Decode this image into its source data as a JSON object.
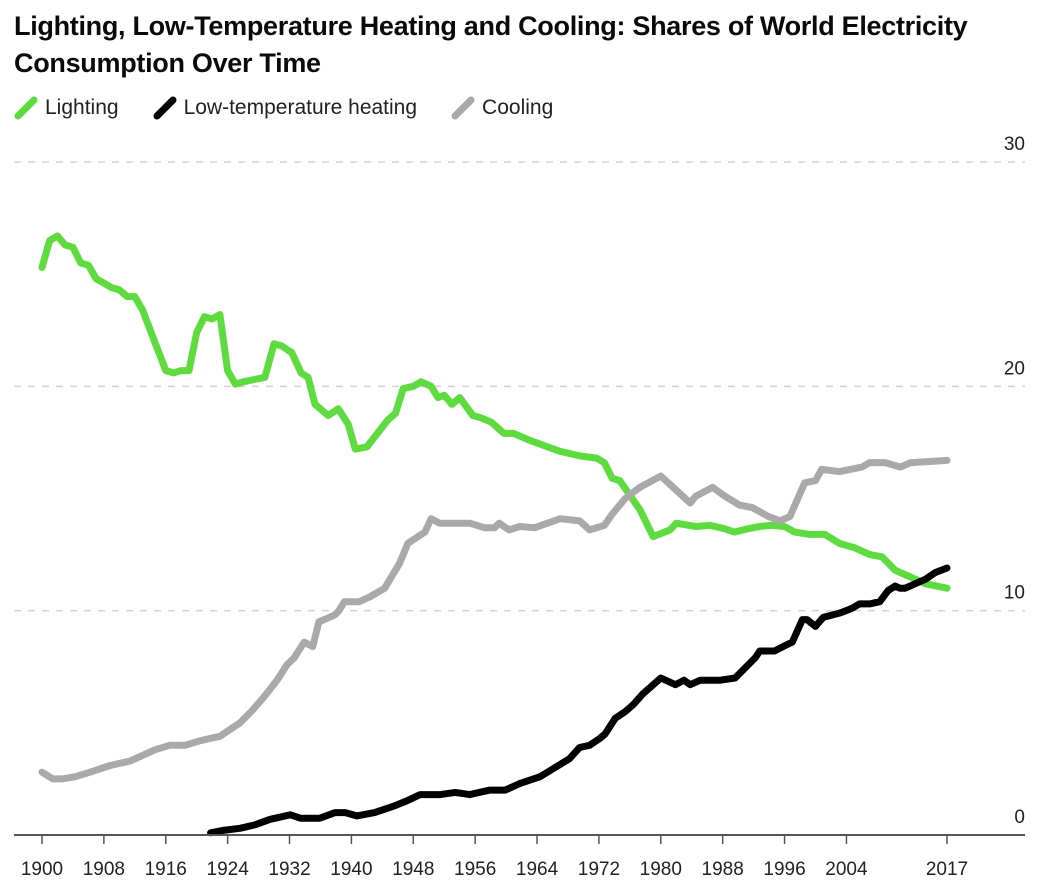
{
  "chart_data": {
    "type": "line",
    "title": "Lighting, Low-Temperature Heating and Cooling: Shares of World Electricity Consumption Over Time",
    "xlabel": "",
    "ylabel": "",
    "xlim": [
      1900,
      2017
    ],
    "ylim": [
      0,
      30
    ],
    "grid": true,
    "legend_position": "top-left",
    "x_ticks": [
      "1900",
      "1908",
      "1916",
      "1924",
      "1932",
      "1940",
      "1948",
      "1956",
      "1964",
      "1972",
      "1980",
      "1988",
      "1996",
      "2004",
      "2017"
    ],
    "y_ticks": [
      "0",
      "10",
      "20",
      "30"
    ],
    "series": [
      {
        "name": "Lighting",
        "color": "#5ddb3f",
        "points": [
          [
            1900,
            25.3
          ],
          [
            1901,
            26.5
          ],
          [
            1902,
            26.7
          ],
          [
            1903,
            26.3
          ],
          [
            1904,
            26.2
          ],
          [
            1905,
            25.5
          ],
          [
            1906,
            25.4
          ],
          [
            1907,
            24.8
          ],
          [
            1908,
            24.6
          ],
          [
            1909,
            24.4
          ],
          [
            1910,
            24.3
          ],
          [
            1911,
            24.0
          ],
          [
            1912,
            24.0
          ],
          [
            1913,
            23.4
          ],
          [
            1914,
            22.5
          ],
          [
            1915,
            21.6
          ],
          [
            1916,
            20.7
          ],
          [
            1917,
            20.6
          ],
          [
            1918,
            20.7
          ],
          [
            1919,
            20.7
          ],
          [
            1920,
            22.4
          ],
          [
            1921,
            23.1
          ],
          [
            1922,
            23.0
          ],
          [
            1923,
            23.2
          ],
          [
            1924,
            20.7
          ],
          [
            1925,
            20.1
          ],
          [
            1926,
            20.2
          ],
          [
            1928.8,
            20.4
          ],
          [
            1930,
            21.9
          ],
          [
            1931,
            21.8
          ],
          [
            1932.3,
            21.5
          ],
          [
            1933.5,
            20.6
          ],
          [
            1934.4,
            20.4
          ],
          [
            1935.3,
            19.2
          ],
          [
            1937,
            18.7
          ],
          [
            1938.3,
            19.0
          ],
          [
            1939.6,
            18.3
          ],
          [
            1940.5,
            17.2
          ],
          [
            1942,
            17.3
          ],
          [
            1944.7,
            18.5
          ],
          [
            1945.7,
            18.8
          ],
          [
            1946.7,
            19.9
          ],
          [
            1948,
            20.0
          ],
          [
            1949,
            20.2
          ],
          [
            1950.3,
            20.0
          ],
          [
            1951.2,
            19.5
          ],
          [
            1952,
            19.6
          ],
          [
            1953,
            19.2
          ],
          [
            1954,
            19.5
          ],
          [
            1955.7,
            18.7
          ],
          [
            1956.7,
            18.6
          ],
          [
            1958.1,
            18.4
          ],
          [
            1959.7,
            17.9
          ],
          [
            1961,
            17.9
          ],
          [
            1963,
            17.6
          ],
          [
            1967,
            17.1
          ],
          [
            1969.5,
            16.9
          ],
          [
            1971.7,
            16.8
          ],
          [
            1972.7,
            16.6
          ],
          [
            1973.7,
            15.9
          ],
          [
            1974.7,
            15.8
          ],
          [
            1977.3,
            14.5
          ],
          [
            1979,
            13.3
          ],
          [
            1981.2,
            13.6
          ],
          [
            1982,
            13.9
          ],
          [
            1984.5,
            13.75
          ],
          [
            1986.4,
            13.8
          ],
          [
            1988.3,
            13.65
          ],
          [
            1989.5,
            13.5
          ],
          [
            1991.2,
            13.65
          ],
          [
            1992.8,
            13.75
          ],
          [
            1994.3,
            13.8
          ],
          [
            1996,
            13.75
          ],
          [
            1997.3,
            13.5
          ],
          [
            1999.2,
            13.4
          ],
          [
            2001.2,
            13.4
          ],
          [
            2003.1,
            13.0
          ],
          [
            2005.1,
            12.8
          ],
          [
            2007,
            12.5
          ],
          [
            2008.6,
            12.4
          ],
          [
            2010.3,
            11.8
          ],
          [
            2012.3,
            11.5
          ],
          [
            2014.2,
            11.2
          ],
          [
            2017,
            11.0
          ]
        ]
      },
      {
        "name": "Low-temperature heating",
        "color": "#000000",
        "points": [
          [
            1921.8,
            0.1
          ],
          [
            1923.3,
            0.2
          ],
          [
            1925.6,
            0.3
          ],
          [
            1927.5,
            0.45
          ],
          [
            1929.5,
            0.7
          ],
          [
            1932.1,
            0.9
          ],
          [
            1933.4,
            0.75
          ],
          [
            1935.9,
            0.75
          ],
          [
            1937.9,
            1.0
          ],
          [
            1939.2,
            1.0
          ],
          [
            1940.7,
            0.85
          ],
          [
            1943,
            1.0
          ],
          [
            1945.6,
            1.3
          ],
          [
            1947,
            1.5
          ],
          [
            1948.9,
            1.8
          ],
          [
            1951.5,
            1.8
          ],
          [
            1953.4,
            1.9
          ],
          [
            1955.3,
            1.8
          ],
          [
            1957.9,
            2.0
          ],
          [
            1959.9,
            2.0
          ],
          [
            1961.8,
            2.3
          ],
          [
            1964.4,
            2.6
          ],
          [
            1966.3,
            3.0
          ],
          [
            1968.2,
            3.4
          ],
          [
            1969.5,
            3.9
          ],
          [
            1970.8,
            4.0
          ],
          [
            1972.1,
            4.3
          ],
          [
            1972.8,
            4.5
          ],
          [
            1974.1,
            5.2
          ],
          [
            1975.4,
            5.5
          ],
          [
            1976.4,
            5.8
          ],
          [
            1977.7,
            6.3
          ],
          [
            1980,
            7.0
          ],
          [
            1981.9,
            6.7
          ],
          [
            1983,
            6.9
          ],
          [
            1983.8,
            6.7
          ],
          [
            1985.1,
            6.9
          ],
          [
            1987.7,
            6.9
          ],
          [
            1989.6,
            7.0
          ],
          [
            1992.2,
            7.9
          ],
          [
            1992.8,
            8.2
          ],
          [
            1994.7,
            8.2
          ],
          [
            1996.4,
            8.5
          ],
          [
            1997,
            8.6
          ],
          [
            1998.3,
            9.6
          ],
          [
            1998.9,
            9.6
          ],
          [
            2000,
            9.3
          ],
          [
            2001,
            9.7
          ],
          [
            2003.2,
            9.9
          ],
          [
            2004.7,
            10.1
          ],
          [
            2005.7,
            10.3
          ],
          [
            2007,
            10.3
          ],
          [
            2008.3,
            10.4
          ],
          [
            2009.4,
            10.9
          ],
          [
            2010.3,
            11.1
          ],
          [
            2010.9,
            11.0
          ],
          [
            2011.6,
            11.0
          ],
          [
            2012.9,
            11.2
          ],
          [
            2014.2,
            11.4
          ],
          [
            2015.5,
            11.7
          ],
          [
            2017,
            11.9
          ]
        ]
      },
      {
        "name": "Cooling",
        "color": "#a9a9a9",
        "points": [
          [
            1900,
            2.8
          ],
          [
            1901.4,
            2.5
          ],
          [
            1902.6,
            2.5
          ],
          [
            1904.3,
            2.6
          ],
          [
            1906.2,
            2.8
          ],
          [
            1908.8,
            3.1
          ],
          [
            1911.4,
            3.3
          ],
          [
            1912.7,
            3.5
          ],
          [
            1914.6,
            3.8
          ],
          [
            1916.5,
            4.0
          ],
          [
            1918.5,
            4.0
          ],
          [
            1920.4,
            4.2
          ],
          [
            1923,
            4.4
          ],
          [
            1925.6,
            5.0
          ],
          [
            1927.3,
            5.6
          ],
          [
            1928.8,
            6.2
          ],
          [
            1930.4,
            6.9
          ],
          [
            1931.7,
            7.6
          ],
          [
            1932.6,
            7.9
          ],
          [
            1933.9,
            8.6
          ],
          [
            1935,
            8.4
          ],
          [
            1935.8,
            9.5
          ],
          [
            1937.8,
            9.8
          ],
          [
            1938.4,
            10.0
          ],
          [
            1939.1,
            10.4
          ],
          [
            1941,
            10.4
          ],
          [
            1942.3,
            10.6
          ],
          [
            1944.3,
            11.0
          ],
          [
            1946.2,
            12.1
          ],
          [
            1947.3,
            13.0
          ],
          [
            1948.6,
            13.3
          ],
          [
            1949.5,
            13.5
          ],
          [
            1950.3,
            14.1
          ],
          [
            1951.4,
            13.9
          ],
          [
            1955.3,
            13.9
          ],
          [
            1957.2,
            13.7
          ],
          [
            1958.5,
            13.7
          ],
          [
            1959.1,
            13.9
          ],
          [
            1960.4,
            13.6
          ],
          [
            1961.8,
            13.75
          ],
          [
            1963.7,
            13.7
          ],
          [
            1967,
            14.1
          ],
          [
            1969.5,
            14.0
          ],
          [
            1970.8,
            13.6
          ],
          [
            1972.7,
            13.8
          ],
          [
            1973.7,
            14.3
          ],
          [
            1975.4,
            15.0
          ],
          [
            1977.3,
            15.5
          ],
          [
            1980,
            16.0
          ],
          [
            1981.9,
            15.4
          ],
          [
            1983.8,
            14.8
          ],
          [
            1984.5,
            15.1
          ],
          [
            1986.7,
            15.5
          ],
          [
            1988.3,
            15.1
          ],
          [
            1990.2,
            14.7
          ],
          [
            1991.8,
            14.6
          ],
          [
            1993.9,
            14.2
          ],
          [
            1995.4,
            14.0
          ],
          [
            1996.7,
            14.2
          ],
          [
            1998.6,
            15.7
          ],
          [
            2000,
            15.8
          ],
          [
            2000.8,
            16.3
          ],
          [
            2003.1,
            16.2
          ],
          [
            2006,
            16.4
          ],
          [
            2007,
            16.6
          ],
          [
            2009,
            16.6
          ],
          [
            2011,
            16.4
          ],
          [
            2012.3,
            16.6
          ],
          [
            2014.8,
            16.65
          ],
          [
            2017,
            16.7
          ]
        ]
      }
    ]
  }
}
